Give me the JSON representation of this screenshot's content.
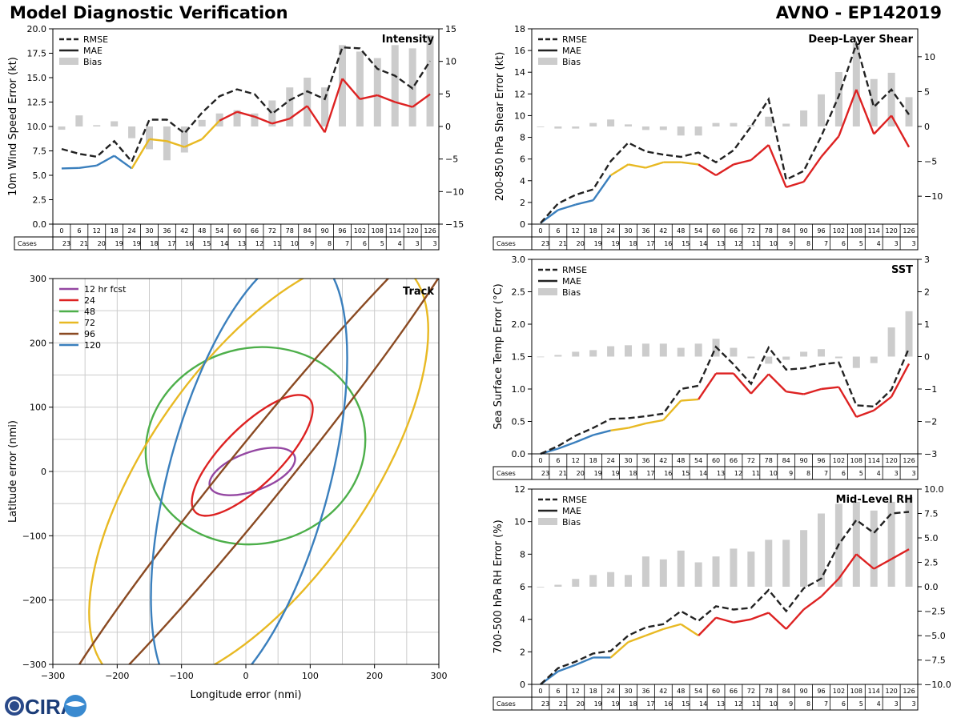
{
  "header": {
    "title": "Model Diagnostic Verification",
    "storm": "AVNO - EP142019"
  },
  "colors": {
    "rmse": "#222222",
    "mae_short": "#3a7fbd",
    "mae_mid": "#e8b923",
    "mae_long": "#dd2222",
    "bias": "#cccccc",
    "grid": "#cccccc",
    "track_12": "#9447a2",
    "track_24": "#dd2222",
    "track_48": "#4daf4a",
    "track_72": "#e8b923",
    "track_96": "#8a4a22",
    "track_120": "#3a7fbd"
  },
  "logo": {
    "text": "CIRA",
    "icon": "cira-globe-icon"
  },
  "chart_data": [
    {
      "id": "intensity",
      "type": "line",
      "title": "Intensity",
      "ylabel": "10m Wind Speed Error (kt)",
      "ylim": [
        0,
        20
      ],
      "yticks": [
        "0.0",
        "2.5",
        "5.0",
        "7.5",
        "10.0",
        "12.5",
        "15.0",
        "17.5",
        "20.0"
      ],
      "y2lim": [
        -15,
        15
      ],
      "y2ticks": [
        "−15",
        "−10",
        "−5",
        "0",
        "5",
        "10",
        "15"
      ],
      "legend": [
        "RMSE",
        "MAE",
        "Bias"
      ],
      "hours": [
        "0",
        "6",
        "12",
        "18",
        "24",
        "30",
        "36",
        "42",
        "48",
        "54",
        "60",
        "66",
        "72",
        "78",
        "84",
        "90",
        "96",
        "102",
        "108",
        "114",
        "120",
        "126"
      ],
      "cases_label": "Cases",
      "cases": [
        "23",
        "21",
        "20",
        "19",
        "19",
        "18",
        "17",
        "16",
        "15",
        "14",
        "13",
        "12",
        "11",
        "10",
        "9",
        "8",
        "7",
        "6",
        "5",
        "4",
        "3",
        "3"
      ],
      "rmse": [
        7.7,
        7.2,
        6.9,
        8.5,
        6.4,
        10.7,
        10.7,
        9.3,
        11.4,
        13.1,
        13.8,
        13.3,
        11.3,
        12.7,
        13.6,
        12.8,
        18.1,
        18.0,
        15.9,
        15.2,
        13.9,
        16.7
      ],
      "mae": [
        5.7,
        5.75,
        6.0,
        7.0,
        5.7,
        8.7,
        8.5,
        7.9,
        8.7,
        10.6,
        11.5,
        11.0,
        10.3,
        10.8,
        12.1,
        9.4,
        14.9,
        12.8,
        13.2,
        12.5,
        12.0,
        13.3
      ],
      "bias": [
        -0.5,
        1.7,
        0.2,
        0.8,
        -1.8,
        -3.5,
        -5.2,
        -4.0,
        1.0,
        2.0,
        2.5,
        2.0,
        4.0,
        6.0,
        7.5,
        6.0,
        12.5,
        11.5,
        10.5,
        12.5,
        12.0,
        14.0
      ]
    },
    {
      "id": "shear",
      "type": "line",
      "title": "Deep-Layer Shear",
      "ylabel": "200-850 hPa Shear Error (kt)",
      "ylim": [
        0,
        18
      ],
      "yticks": [
        "0",
        "2",
        "4",
        "6",
        "8",
        "10",
        "12",
        "14",
        "16",
        "18"
      ],
      "y2lim": [
        -14,
        14
      ],
      "y2ticks": [
        "−10",
        "−5",
        "0",
        "5",
        "10"
      ],
      "legend": [
        "RMSE",
        "MAE",
        "Bias"
      ],
      "hours": [
        "0",
        "6",
        "12",
        "18",
        "24",
        "30",
        "36",
        "42",
        "48",
        "54",
        "60",
        "66",
        "72",
        "78",
        "84",
        "90",
        "96",
        "102",
        "108",
        "114",
        "120",
        "126"
      ],
      "cases_label": "Cases",
      "cases": [
        "23",
        "21",
        "20",
        "19",
        "19",
        "18",
        "17",
        "16",
        "15",
        "14",
        "13",
        "12",
        "11",
        "10",
        "9",
        "8",
        "7",
        "6",
        "5",
        "4",
        "3",
        "3"
      ],
      "rmse": [
        0.1,
        1.9,
        2.7,
        3.2,
        5.8,
        7.5,
        6.7,
        6.4,
        6.2,
        6.6,
        5.7,
        6.8,
        9.0,
        11.5,
        4.1,
        4.9,
        8.1,
        11.8,
        16.6,
        10.8,
        12.4,
        10.1
      ],
      "mae": [
        0.1,
        1.3,
        1.8,
        2.2,
        4.5,
        5.5,
        5.2,
        5.7,
        5.7,
        5.5,
        4.5,
        5.5,
        5.9,
        7.3,
        3.4,
        3.9,
        6.2,
        8.1,
        12.4,
        8.3,
        10.0,
        7.1
      ],
      "bias": [
        0,
        -0.3,
        -0.3,
        0.5,
        1.0,
        0.3,
        -0.5,
        -0.5,
        -1.3,
        -1.3,
        0.5,
        0.5,
        0.2,
        1.4,
        0.4,
        2.3,
        4.6,
        7.8,
        12.0,
        6.8,
        7.7,
        4.2
      ]
    },
    {
      "id": "sst",
      "type": "line",
      "title": "SST",
      "ylabel": "Sea Surface Temp Error (°C)",
      "ylim": [
        0,
        3
      ],
      "yticks": [
        "0.0",
        "0.5",
        "1.0",
        "1.5",
        "2.0",
        "2.5",
        "3.0"
      ],
      "y2lim": [
        -3,
        3
      ],
      "y2ticks": [
        "−3",
        "−2",
        "−1",
        "0",
        "1",
        "2",
        "3"
      ],
      "legend": [
        "RMSE",
        "MAE",
        "Bias"
      ],
      "hours": [
        "0",
        "6",
        "12",
        "18",
        "24",
        "30",
        "36",
        "42",
        "48",
        "54",
        "60",
        "66",
        "72",
        "78",
        "84",
        "90",
        "96",
        "102",
        "108",
        "114",
        "120",
        "126"
      ],
      "cases_label": "Cases",
      "cases": [
        "23",
        "21",
        "20",
        "19",
        "19",
        "18",
        "17",
        "16",
        "15",
        "14",
        "13",
        "12",
        "11",
        "10",
        "9",
        "8",
        "7",
        "6",
        "5",
        "4",
        "3",
        "3"
      ],
      "rmse": [
        0.0,
        0.12,
        0.28,
        0.4,
        0.54,
        0.55,
        0.58,
        0.62,
        1.0,
        1.05,
        1.65,
        1.38,
        1.08,
        1.64,
        1.3,
        1.32,
        1.38,
        1.41,
        0.75,
        0.73,
        0.99,
        1.63
      ],
      "mae": [
        0.0,
        0.08,
        0.18,
        0.29,
        0.36,
        0.4,
        0.47,
        0.52,
        0.82,
        0.84,
        1.24,
        1.24,
        0.93,
        1.23,
        0.96,
        0.92,
        1.0,
        1.03,
        0.57,
        0.67,
        0.88,
        1.39
      ],
      "bias": [
        0,
        0.05,
        0.15,
        0.2,
        0.32,
        0.35,
        0.4,
        0.4,
        0.27,
        0.4,
        0.55,
        0.27,
        -0.05,
        -0.22,
        -0.1,
        0.15,
        0.23,
        -0.05,
        -0.35,
        -0.2,
        0.9,
        1.4
      ]
    },
    {
      "id": "rh",
      "type": "line",
      "title": "Mid-Level RH",
      "ylabel": "700-500 hPa RH Error (%)",
      "ylim": [
        0,
        12
      ],
      "yticks": [
        "0",
        "2",
        "4",
        "6",
        "8",
        "10",
        "12"
      ],
      "y2lim": [
        -10,
        10
      ],
      "y2ticks": [
        "−10.0",
        "−7.5",
        "−5.0",
        "−2.5",
        "0.0",
        "2.5",
        "5.0",
        "7.5",
        "10.0"
      ],
      "legend": [
        "RMSE",
        "MAE",
        "Bias"
      ],
      "hours": [
        "0",
        "6",
        "12",
        "18",
        "24",
        "30",
        "36",
        "42",
        "48",
        "54",
        "60",
        "66",
        "72",
        "78",
        "84",
        "90",
        "96",
        "102",
        "108",
        "114",
        "120",
        "126"
      ],
      "cases_label": "Cases",
      "cases": [
        "23",
        "21",
        "20",
        "19",
        "19",
        "18",
        "17",
        "16",
        "15",
        "14",
        "13",
        "12",
        "11",
        "10",
        "9",
        "8",
        "7",
        "6",
        "5",
        "4",
        "3",
        "3"
      ],
      "rmse": [
        0.0,
        1.0,
        1.4,
        1.9,
        2.05,
        3.0,
        3.5,
        3.7,
        4.5,
        3.9,
        4.8,
        4.6,
        4.7,
        5.8,
        4.5,
        5.9,
        6.5,
        8.6,
        10.1,
        9.3,
        10.5,
        10.6
      ],
      "mae": [
        0.0,
        0.8,
        1.2,
        1.65,
        1.65,
        2.6,
        3.0,
        3.4,
        3.7,
        3.0,
        4.1,
        3.8,
        4.0,
        4.4,
        3.4,
        4.6,
        5.4,
        6.5,
        8.0,
        7.1,
        7.7,
        8.3
      ],
      "bias": [
        0,
        0.2,
        0.8,
        1.2,
        1.5,
        1.2,
        3.1,
        2.8,
        3.7,
        2.5,
        3.1,
        3.9,
        3.6,
        4.8,
        4.8,
        5.8,
        7.5,
        8.5,
        8.7,
        7.8,
        8.7,
        9.2
      ]
    },
    {
      "id": "track",
      "type": "scatter",
      "title": "Track",
      "xlabel": "Longitude error (nmi)",
      "ylabel": "Latitude error (nmi)",
      "xlim": [
        -300,
        300
      ],
      "ylim": [
        -300,
        300
      ],
      "ticks": [
        "−300",
        "−200",
        "−100",
        "0",
        "100",
        "200",
        "300"
      ],
      "ellipses": [
        {
          "name": "12 hr fcst",
          "cx": 10,
          "cy": 0,
          "a": 70,
          "b": 30,
          "angle": 20
        },
        {
          "name": "24",
          "cx": 10,
          "cy": 25,
          "a": 125,
          "b": 45,
          "angle": 45
        },
        {
          "name": "48",
          "cx": 15,
          "cy": 40,
          "a": 172,
          "b": 152,
          "angle": 15
        },
        {
          "name": "72",
          "cx": 20,
          "cy": 0,
          "a": 390,
          "b": 170,
          "angle": 55
        },
        {
          "name": "96",
          "cx": 20,
          "cy": 0,
          "a": 520,
          "b": 45,
          "angle": 51
        },
        {
          "name": "120",
          "cx": 5,
          "cy": -10,
          "a": 360,
          "b": 125,
          "angle": 75
        }
      ]
    }
  ]
}
